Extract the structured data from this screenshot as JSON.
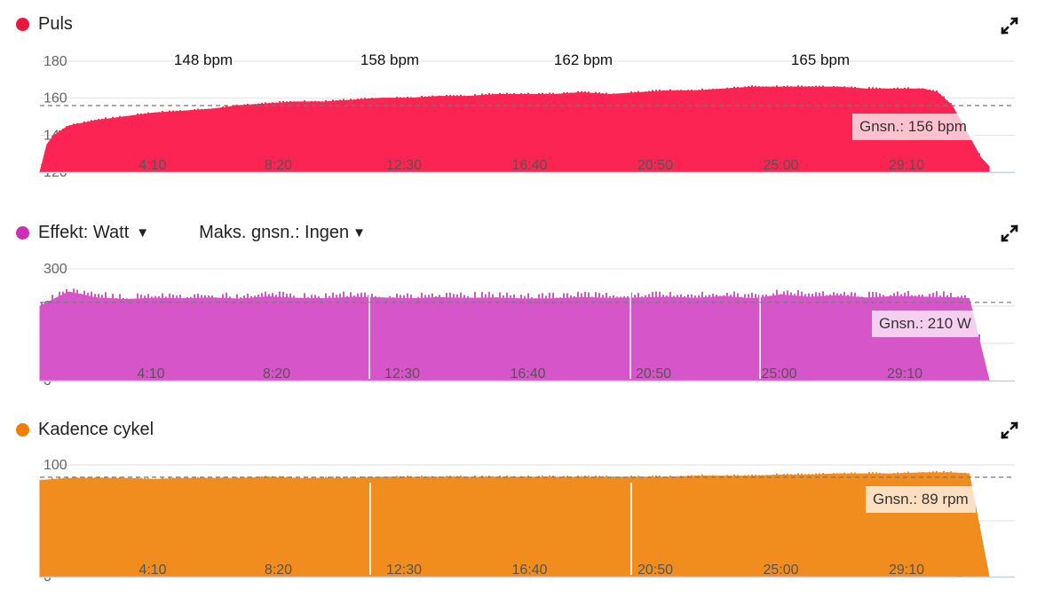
{
  "panels": {
    "puls": {
      "title": "Puls",
      "avg_label": "Gnsn.: 156 bpm",
      "peak_labels": [
        "148 bpm",
        "158 bpm",
        "162 bpm",
        "165 bpm"
      ],
      "color": "#fb2453"
    },
    "effekt": {
      "title": "Effekt: Watt",
      "max_avg_label": "Maks. gnsn.: Ingen",
      "avg_label": "Gnsn.: 210 W",
      "color": "#d655c8"
    },
    "kadence": {
      "title": "Kadence cykel",
      "avg_label": "Gnsn.: 89 rpm",
      "color": "#f08d1e"
    }
  },
  "icons": {
    "expand": "expand-icon"
  },
  "chart_data": [
    {
      "type": "area",
      "series": [
        {
          "name": "Puls",
          "x": [
            0,
            0.25,
            0.5,
            1,
            2,
            3,
            4,
            5,
            6,
            7,
            8,
            9,
            10,
            11,
            12,
            13,
            14,
            15,
            16,
            17,
            18,
            19,
            20,
            21,
            22,
            23,
            24,
            25,
            26,
            27,
            28,
            29,
            30,
            31,
            31.5,
            32,
            32.5,
            33,
            33.3
          ],
          "values": [
            120,
            135,
            140,
            145,
            148,
            150,
            152,
            153,
            154,
            156,
            157,
            158,
            158,
            159,
            160,
            160,
            161,
            161,
            162,
            162,
            162,
            163,
            162,
            163,
            164,
            164,
            165,
            166,
            166,
            166,
            166,
            165,
            165,
            165,
            163,
            156,
            142,
            128,
            123
          ]
        }
      ],
      "ylim": [
        120,
        180
      ],
      "yticks": [
        120,
        140,
        160,
        180
      ],
      "xticks": [
        "4:10",
        "8:20",
        "12:30",
        "16:40",
        "20:50",
        "25:00",
        "29:10"
      ],
      "average": 156,
      "annotations": [
        "148 bpm",
        "158 bpm",
        "162 bpm",
        "165 bpm"
      ]
    },
    {
      "type": "area",
      "series": [
        {
          "name": "Effekt: Watt",
          "x": [
            0,
            1,
            2,
            3,
            4,
            5,
            6,
            7,
            8,
            9,
            10,
            11,
            12,
            13,
            14,
            15,
            16,
            17,
            18,
            19,
            20,
            21,
            22,
            23,
            24,
            25,
            26,
            27,
            28,
            29,
            30,
            31,
            32,
            32.6,
            33.3
          ],
          "values": [
            200,
            238,
            222,
            218,
            221,
            220,
            222,
            219,
            225,
            221,
            220,
            224,
            222,
            220,
            223,
            221,
            222,
            219,
            220,
            223,
            221,
            222,
            224,
            221,
            226,
            220,
            230,
            224,
            228,
            222,
            226,
            224,
            223,
            220,
            0
          ]
        }
      ],
      "ylim": [
        0,
        300
      ],
      "yticks": [
        0,
        100,
        200,
        300
      ],
      "xticks": [
        "4:10",
        "8:20",
        "12:30",
        "16:40",
        "20:50",
        "25:00",
        "29:10"
      ],
      "average": 210
    },
    {
      "type": "area",
      "series": [
        {
          "name": "Kadence cykel",
          "x": [
            0,
            1,
            2,
            3,
            4,
            5,
            6,
            7,
            8,
            9,
            10,
            11,
            12,
            13,
            14,
            15,
            16,
            17,
            18,
            19,
            20,
            21,
            22,
            23,
            24,
            25,
            26,
            27,
            28,
            29,
            30,
            31,
            32,
            32.6,
            33.3
          ],
          "values": [
            86,
            88,
            88,
            88,
            87,
            88,
            88,
            88,
            89,
            88,
            88,
            88,
            89,
            89,
            89,
            89,
            89,
            89,
            89,
            89,
            89,
            89,
            89,
            90,
            90,
            90,
            91,
            91,
            92,
            92,
            92,
            93,
            93,
            92,
            0
          ]
        }
      ],
      "ylim": [
        0,
        100
      ],
      "yticks": [
        0,
        50,
        100
      ],
      "xticks": [
        "4:10",
        "8:20",
        "12:30",
        "16:40",
        "20:50",
        "25:00",
        "29:10"
      ],
      "average": 89
    }
  ]
}
